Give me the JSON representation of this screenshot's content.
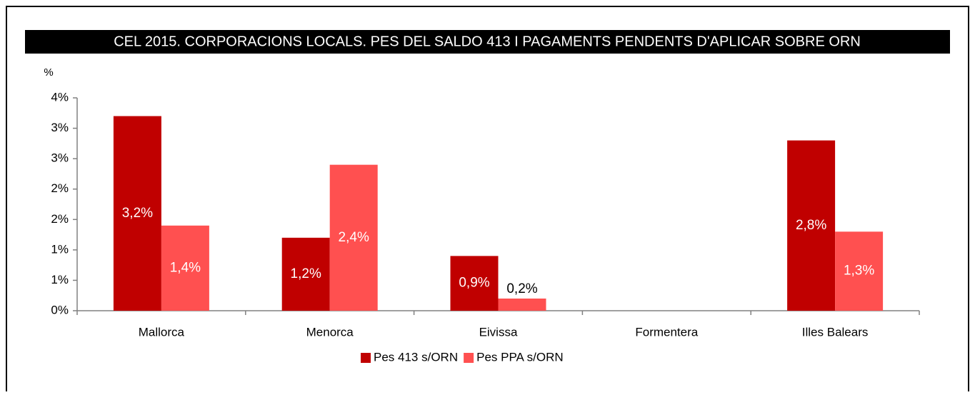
{
  "chart_data": {
    "type": "bar",
    "title": "CEL 2015. CORPORACIONS LOCALS. PES DEL SALDO 413 I PAGAMENTS PENDENTS D'APLICAR SOBRE ORN",
    "y_label": "%",
    "categories": [
      "Mallorca",
      "Menorca",
      "Eivissa",
      "Formentera",
      "Illes Balears"
    ],
    "series": [
      {
        "name": "Pes 413 s/ORN",
        "color": "#c00000",
        "values": [
          3.2,
          1.2,
          0.9,
          null,
          2.8
        ],
        "value_labels": [
          "3,2%",
          "1,2%",
          "0,9%",
          null,
          "2,8%"
        ]
      },
      {
        "name": "Pes PPA s/ORN",
        "color": "#ff5050",
        "values": [
          1.4,
          2.4,
          0.2,
          null,
          1.3
        ],
        "value_labels": [
          "1,4%",
          "2,4%",
          "0,2%",
          null,
          "1,3%"
        ]
      }
    ],
    "ylim": [
      0,
      3.5
    ],
    "yticks": [
      {
        "value": 0,
        "label": "0%"
      },
      {
        "value": 0.5,
        "label": "1%"
      },
      {
        "value": 1,
        "label": "1%"
      },
      {
        "value": 1.5,
        "label": "2%"
      },
      {
        "value": 2,
        "label": "2%"
      },
      {
        "value": 2.5,
        "label": "3%"
      },
      {
        "value": 3,
        "label": "3%"
      },
      {
        "value": 3.5,
        "label": "4%"
      }
    ],
    "legend": "bottom"
  }
}
